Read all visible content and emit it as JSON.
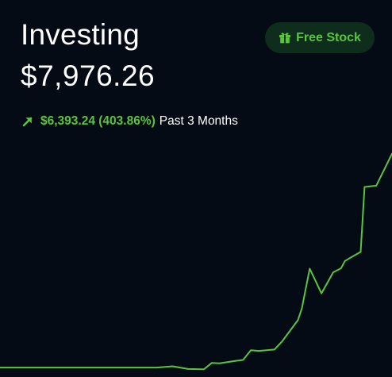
{
  "header": {
    "title": "Investing",
    "balance": "$7,976.26"
  },
  "free_stock_button": {
    "label": "Free Stock",
    "icon": "gift-icon"
  },
  "performance": {
    "icon": "arrow-up-right-icon",
    "change": "$6,393.24 (403.86%)",
    "period": "Past 3 Months"
  },
  "colors": {
    "background": "#050b15",
    "accent_green": "#5ac53b",
    "button_background": "#0f2d1d",
    "text": "#ffffff"
  },
  "chart_data": {
    "type": "line",
    "x": [
      0,
      10,
      20,
      30,
      40,
      44,
      48,
      52,
      54,
      56,
      60,
      62,
      64,
      66,
      70,
      72,
      76,
      77,
      79,
      82,
      85,
      87,
      88,
      89,
      92,
      93,
      96,
      100
    ],
    "y": [
      1583,
      1583,
      1583,
      1583,
      1583,
      1620,
      1540,
      1530,
      1720,
      1710,
      1780,
      1810,
      2100,
      2080,
      2120,
      2370,
      3000,
      3350,
      4540,
      3800,
      4430,
      4550,
      4770,
      4840,
      5040,
      6980,
      7020,
      7976
    ],
    "xlim": [
      0,
      100
    ],
    "ylim": [
      1300,
      8300
    ]
  }
}
